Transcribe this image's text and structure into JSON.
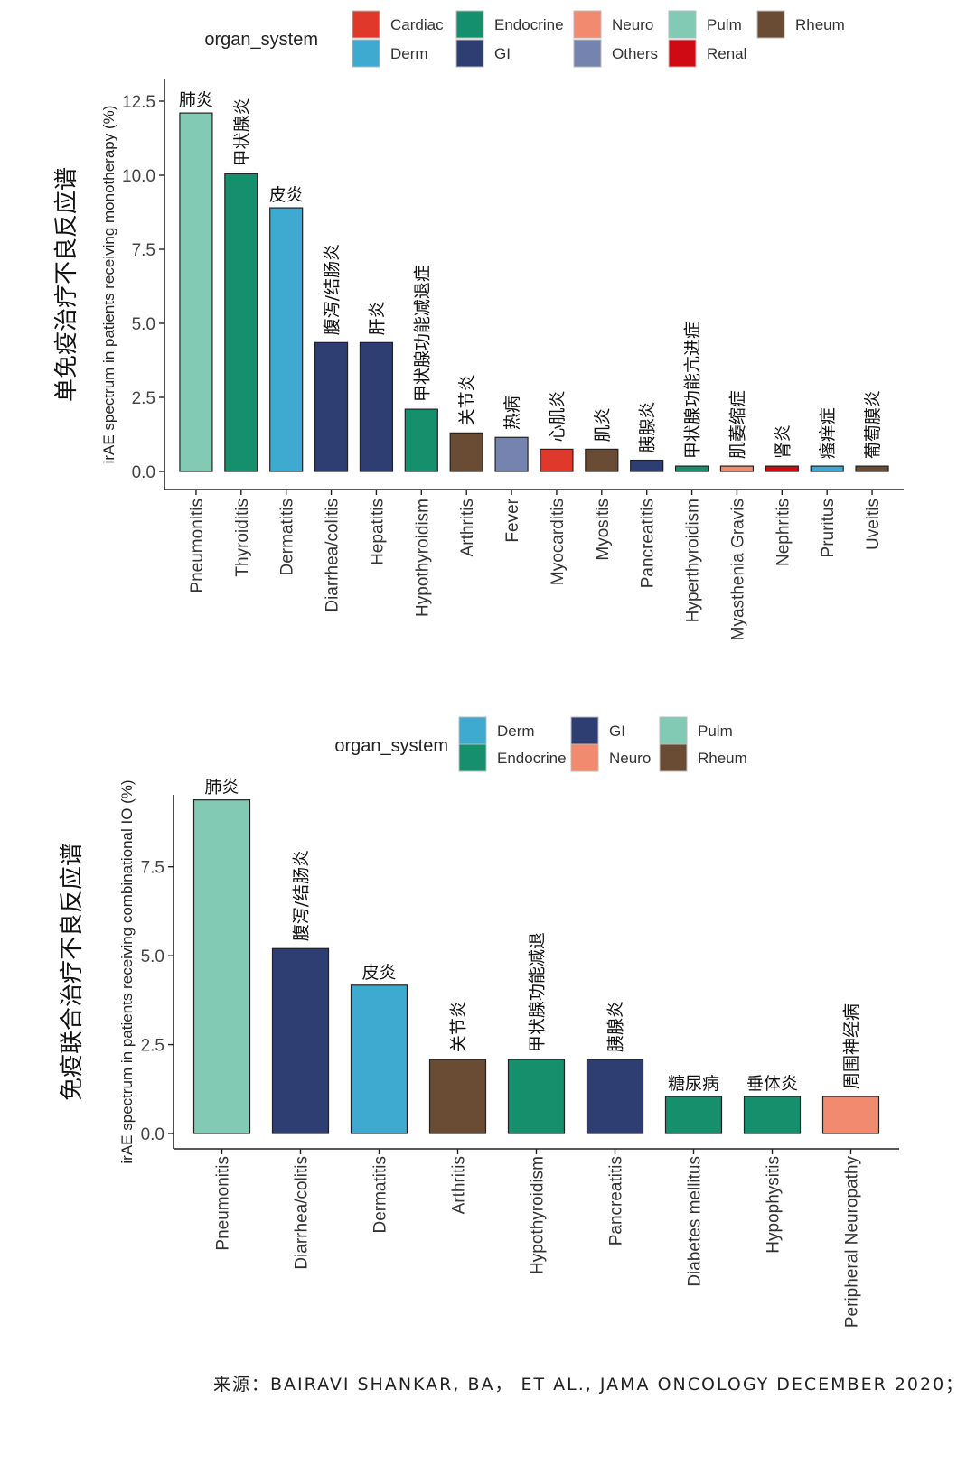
{
  "colors": {
    "Cardiac": "#e0392b",
    "Derm": "#3eaacf",
    "Endocrine": "#16906c",
    "GI": "#2e3e72",
    "Neuro": "#f18a6e",
    "Others": "#7584ae",
    "Pulm": "#82cab3",
    "Renal": "#cf0a14",
    "Rheum": "#6a4b33"
  },
  "chart_data": [
    {
      "type": "bar",
      "title": "",
      "ylabel": "irAE spectrum in patients receiving monotherapy (%)",
      "ylabel_cn": "单免疫治疗不良反应谱",
      "legend_title": "organ_system",
      "legend": [
        "Cardiac",
        "Derm",
        "Endocrine",
        "GI",
        "Neuro",
        "Others",
        "Pulm",
        "Renal",
        "Rheum"
      ],
      "ylim": [
        0,
        12.5
      ],
      "yticks": [
        "0.0",
        "2.5",
        "5.0",
        "7.5",
        "10.0",
        "12.5"
      ],
      "categories": [
        "Pneumonitis",
        "Thyroiditis",
        "Dermatitis",
        "Diarrhea/colitis",
        "Hepatitis",
        "Hypothyroidism",
        "Arthritis",
        "Fever",
        "Myocarditis",
        "Myositis",
        "Pancreatitis",
        "Hyperthyroidism",
        "Myasthenia Gravis",
        "Nephritis",
        "Pruritus",
        "Uveitis"
      ],
      "labels_cn": [
        "肺炎",
        "甲状腺炎",
        "皮炎",
        "腹泻/结肠炎",
        "肝炎",
        "甲状腺功能减退症",
        "关节炎",
        "热病",
        "心肌炎",
        "肌炎",
        "胰腺炎",
        "甲状腺功能亢进症",
        "肌萎缩症",
        "肾炎",
        "瘙痒症",
        "葡萄膜炎"
      ],
      "organ_system": [
        "Pulm",
        "Endocrine",
        "Derm",
        "GI",
        "GI",
        "Endocrine",
        "Rheum",
        "Others",
        "Cardiac",
        "Rheum",
        "GI",
        "Endocrine",
        "Neuro",
        "Renal",
        "Derm",
        "Rheum"
      ],
      "values": [
        12.1,
        10.05,
        8.9,
        4.35,
        4.35,
        2.1,
        1.3,
        1.15,
        0.75,
        0.75,
        0.38,
        0.18,
        0.18,
        0.18,
        0.18,
        0.18
      ]
    },
    {
      "type": "bar",
      "title": "",
      "ylabel": "irAE spectrum in patients receiving combinational IO (%)",
      "ylabel_cn": "免疫联合治疗不良反应谱",
      "legend_title": "organ_system",
      "legend": [
        "Derm",
        "Endocrine",
        "GI",
        "Neuro",
        "Pulm",
        "Rheum"
      ],
      "ylim": [
        0,
        9.6
      ],
      "yticks": [
        "0.0",
        "2.5",
        "5.0",
        "7.5"
      ],
      "categories": [
        "Pneumonitis",
        "Diarrhea/colitis",
        "Dermatitis",
        "Arthritis",
        "Hypothyroidism",
        "Pancreatitis",
        "Diabetes mellitus",
        "Hypophysitis",
        "Peripheral Neuropathy"
      ],
      "labels_cn": [
        "肺炎",
        "腹泻/结肠炎",
        "皮炎",
        "关节炎",
        "甲状腺功能减退",
        "胰腺炎",
        "糖尿病",
        "垂体炎",
        "周围神经病"
      ],
      "organ_system": [
        "Pulm",
        "GI",
        "Derm",
        "Rheum",
        "Endocrine",
        "GI",
        "Endocrine",
        "Endocrine",
        "Neuro"
      ],
      "values": [
        9.38,
        5.2,
        4.17,
        2.08,
        2.08,
        2.08,
        1.04,
        1.04,
        1.04
      ]
    }
  ],
  "source_note": "来源：BAIRAVI SHANKAR, BA， ET AL., JAMA ONCOLOGY DECEMBER 2020；"
}
